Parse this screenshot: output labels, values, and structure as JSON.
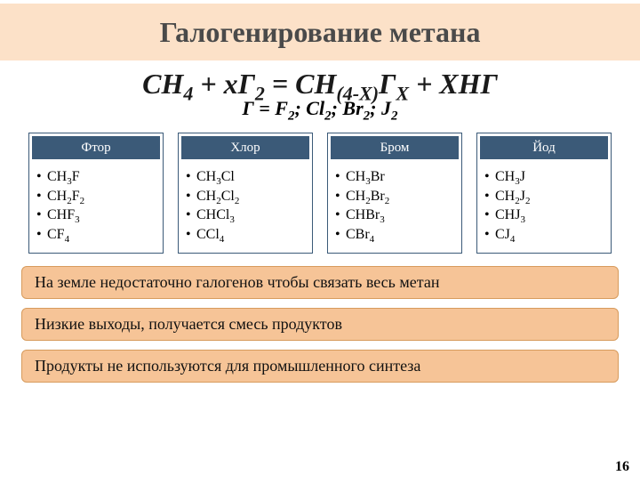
{
  "title": "Галогенирование метана",
  "equation": {
    "parts": [
      "CH",
      "4",
      " + xГ",
      "2",
      " = CH",
      "(4-X)",
      "Г",
      "X",
      " + XHГ"
    ],
    "sub_line_prefix": "Г = F",
    "sub_line_mid1": "; Cl",
    "sub_line_mid2": "; Br",
    "sub_line_mid3": "; J",
    "sub_two": "2"
  },
  "columns": [
    {
      "header": "Фтор",
      "items": [
        {
          "pre": "CH",
          "s1": "3",
          "mid": "F",
          "s2": ""
        },
        {
          "pre": "CH",
          "s1": "2",
          "mid": "F",
          "s2": "2"
        },
        {
          "pre": "CHF",
          "s1": "3",
          "mid": "",
          "s2": ""
        },
        {
          "pre": "CF",
          "s1": "4",
          "mid": "",
          "s2": ""
        }
      ]
    },
    {
      "header": "Хлор",
      "items": [
        {
          "pre": "CH",
          "s1": "3",
          "mid": "Cl",
          "s2": ""
        },
        {
          "pre": "CH",
          "s1": "2",
          "mid": "Cl",
          "s2": "2"
        },
        {
          "pre": "CHCl",
          "s1": "3",
          "mid": "",
          "s2": ""
        },
        {
          "pre": "CCl",
          "s1": "4",
          "mid": "",
          "s2": ""
        }
      ]
    },
    {
      "header": "Бром",
      "items": [
        {
          "pre": "CH",
          "s1": "3",
          "mid": "Br",
          "s2": ""
        },
        {
          "pre": "CH",
          "s1": "2",
          "mid": "Br",
          "s2": "2"
        },
        {
          "pre": "CHBr",
          "s1": "3",
          "mid": "",
          "s2": ""
        },
        {
          "pre": "CBr",
          "s1": "4",
          "mid": "",
          "s2": ""
        }
      ]
    },
    {
      "header": "Йод",
      "items": [
        {
          "pre": "CH",
          "s1": "3",
          "mid": "J",
          "s2": ""
        },
        {
          "pre": "CH",
          "s1": "2",
          "mid": "J",
          "s2": "2"
        },
        {
          "pre": "CHJ",
          "s1": "3",
          "mid": "",
          "s2": ""
        },
        {
          "pre": "CJ",
          "s1": "4",
          "mid": "",
          "s2": ""
        }
      ]
    }
  ],
  "notes": [
    "На земле недостаточно галогенов чтобы связать весь метан",
    "Низкие выходы, получается смесь продуктов",
    "Продукты не используются для промышленного синтеза"
  ],
  "page_number": "16",
  "colors": {
    "title_bg": "#fce1c8",
    "col_header_bg": "#3b5a78",
    "note_bg": "#f6c497",
    "note_border": "#d79b5d"
  }
}
